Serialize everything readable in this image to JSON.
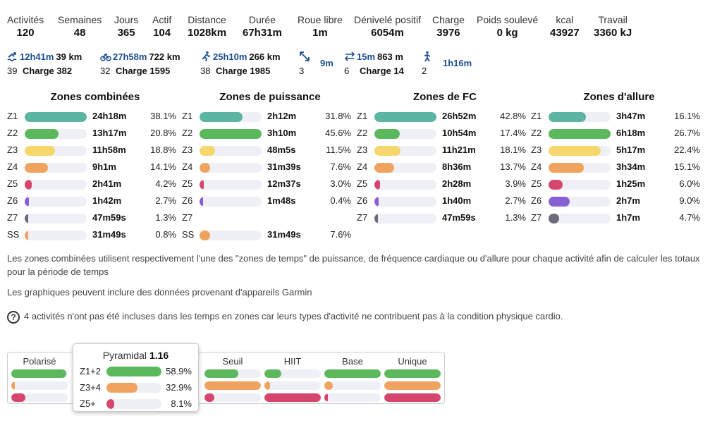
{
  "stats": [
    {
      "label": "Activités",
      "value": "120"
    },
    {
      "label": "Semaines",
      "value": "48"
    },
    {
      "label": "Jours",
      "value": "365"
    },
    {
      "label": "Actif",
      "value": "104"
    },
    {
      "label": "Distance",
      "value": "1028km"
    },
    {
      "label": "Durée",
      "value": "67h31m"
    },
    {
      "label": "Roue libre",
      "value": "1m"
    },
    {
      "label": "Dénivelé positif",
      "value": "6054m"
    },
    {
      "label": "Charge",
      "value": "3976"
    },
    {
      "label": "Poids soulevé",
      "value": "0 kg"
    },
    {
      "label": "kcal",
      "value": "43927"
    },
    {
      "label": "Travail",
      "value": "3360 kJ"
    }
  ],
  "sports": [
    {
      "icon": "swim-icon",
      "time": "12h41m",
      "distance": "39 km",
      "count": "39",
      "charge": "Charge 382"
    },
    {
      "icon": "bike-icon",
      "time": "27h58m",
      "distance": "722 km",
      "count": "32",
      "charge": "Charge 1595"
    },
    {
      "icon": "run-icon",
      "time": "25h10m",
      "distance": "266 km",
      "count": "38",
      "charge": "Charge 1985"
    },
    {
      "icon": "diagonal-arrows-icon",
      "time": "9m",
      "distance": "",
      "count": "3",
      "charge": ""
    },
    {
      "icon": "swap-arrows-icon",
      "time": "15m",
      "distance": "863 m",
      "count": "6",
      "charge": "Charge 14"
    },
    {
      "icon": "walk-icon",
      "time": "1h16m",
      "distance": "",
      "count": "2",
      "charge": ""
    }
  ],
  "colors": {
    "z1": "#5bb5a2",
    "z2": "#5cb85c",
    "z3": "#f5d76e",
    "z4": "#f0a35e",
    "z5": "#d6456e",
    "z6": "#8a5fd6",
    "z7": "#6b6b7b",
    "ss": "#f0a35e",
    "time_blue": "#1a4d8f"
  },
  "zone_panels": [
    {
      "title": "Zones combinées",
      "rows": [
        {
          "zone": "Z1",
          "time": "24h18m",
          "pct": "38.1%",
          "value": 38.1,
          "color": "#5bb5a2"
        },
        {
          "zone": "Z2",
          "time": "13h17m",
          "pct": "20.8%",
          "value": 20.8,
          "color": "#5cb85c"
        },
        {
          "zone": "Z3",
          "time": "11h58m",
          "pct": "18.8%",
          "value": 18.8,
          "color": "#f5d76e"
        },
        {
          "zone": "Z4",
          "time": "9h1m",
          "pct": "14.1%",
          "value": 14.1,
          "color": "#f0a35e"
        },
        {
          "zone": "Z5",
          "time": "2h41m",
          "pct": "4.2%",
          "value": 4.2,
          "color": "#d6456e"
        },
        {
          "zone": "Z6",
          "time": "1h42m",
          "pct": "2.7%",
          "value": 2.7,
          "color": "#8a5fd6"
        },
        {
          "zone": "Z7",
          "time": "47m59s",
          "pct": "1.3%",
          "value": 1.3,
          "color": "#6b6b7b"
        },
        {
          "zone": "SS",
          "time": "31m49s",
          "pct": "0.8%",
          "value": 0.8,
          "color": "#f0a35e"
        }
      ]
    },
    {
      "title": "Zones de puissance",
      "rows": [
        {
          "zone": "Z1",
          "time": "2h12m",
          "pct": "31.8%",
          "value": 31.8,
          "color": "#5bb5a2"
        },
        {
          "zone": "Z2",
          "time": "3h10m",
          "pct": "45.6%",
          "value": 45.6,
          "color": "#5cb85c"
        },
        {
          "zone": "Z3",
          "time": "48m5s",
          "pct": "11.5%",
          "value": 11.5,
          "color": "#f5d76e"
        },
        {
          "zone": "Z4",
          "time": "31m39s",
          "pct": "7.6%",
          "value": 7.6,
          "color": "#f0a35e"
        },
        {
          "zone": "Z5",
          "time": "12m37s",
          "pct": "3.0%",
          "value": 3.0,
          "color": "#d6456e"
        },
        {
          "zone": "Z6",
          "time": "1m48s",
          "pct": "0.4%",
          "value": 0.4,
          "color": "#8a5fd6"
        },
        {
          "zone": "Z7",
          "time": "",
          "pct": "",
          "value": 0,
          "color": "#6b6b7b"
        },
        {
          "zone": "SS",
          "time": "31m49s",
          "pct": "7.6%",
          "value": 7.6,
          "color": "#f0a35e"
        }
      ]
    },
    {
      "title": "Zones de FC",
      "rows": [
        {
          "zone": "Z1",
          "time": "26h52m",
          "pct": "42.8%",
          "value": 42.8,
          "color": "#5bb5a2"
        },
        {
          "zone": "Z2",
          "time": "10h54m",
          "pct": "17.4%",
          "value": 17.4,
          "color": "#5cb85c"
        },
        {
          "zone": "Z3",
          "time": "11h21m",
          "pct": "18.1%",
          "value": 18.1,
          "color": "#f5d76e"
        },
        {
          "zone": "Z4",
          "time": "8h36m",
          "pct": "13.7%",
          "value": 13.7,
          "color": "#f0a35e"
        },
        {
          "zone": "Z5",
          "time": "2h28m",
          "pct": "3.9%",
          "value": 3.9,
          "color": "#d6456e"
        },
        {
          "zone": "Z6",
          "time": "1h40m",
          "pct": "2.7%",
          "value": 2.7,
          "color": "#8a5fd6"
        },
        {
          "zone": "Z7",
          "time": "47m59s",
          "pct": "1.3%",
          "value": 1.3,
          "color": "#6b6b7b"
        }
      ]
    },
    {
      "title": "Zones d'allure",
      "rows": [
        {
          "zone": "Z1",
          "time": "3h47m",
          "pct": "16.1%",
          "value": 16.1,
          "color": "#5bb5a2"
        },
        {
          "zone": "Z2",
          "time": "6h18m",
          "pct": "26.7%",
          "value": 26.7,
          "color": "#5cb85c"
        },
        {
          "zone": "Z3",
          "time": "5h17m",
          "pct": "22.4%",
          "value": 22.4,
          "color": "#f5d76e"
        },
        {
          "zone": "Z4",
          "time": "3h34m",
          "pct": "15.1%",
          "value": 15.1,
          "color": "#f0a35e"
        },
        {
          "zone": "Z5",
          "time": "1h25m",
          "pct": "6.0%",
          "value": 6.0,
          "color": "#d6456e"
        },
        {
          "zone": "Z6",
          "time": "2h7m",
          "pct": "9.0%",
          "value": 9.0,
          "color": "#8a5fd6"
        },
        {
          "zone": "Z7",
          "time": "1h7m",
          "pct": "4.7%",
          "value": 4.7,
          "color": "#6b6b7b"
        }
      ]
    }
  ],
  "notes": {
    "combined": "Les zones combinées utilisent respectivement l'une des \"zones de temps\" de puissance, de fréquence cardiaque ou d'allure pour chaque activité afin de calculer les totaux pour la période de temps",
    "garmin": "Les graphiques peuvent inclure des données provenant d'appareils Garmin",
    "excluded": "4 activités n'ont pas été incluses dans les temps en zones car leurs types d'activité ne contribuent pas à la condition physique cardio."
  },
  "distribution": {
    "models": [
      {
        "label": "Polarisé",
        "bars": [
          0.98,
          0.06,
          0.25
        ]
      },
      {
        "label": "Pyramidal",
        "bars": [
          0.589,
          0.329,
          0.081
        ]
      },
      {
        "label": "Seuil",
        "bars": [
          0.6,
          1.0,
          0.18
        ]
      },
      {
        "label": "HIIT",
        "bars": [
          0.3,
          0.1,
          1.0
        ]
      },
      {
        "label": "Base",
        "bars": [
          1.0,
          0.15,
          0.06
        ]
      },
      {
        "label": "Unique",
        "bars": [
          1.0,
          1.0,
          1.0
        ]
      }
    ],
    "bar_colors": [
      "#5cb85c",
      "#f0a35e",
      "#d6456e"
    ],
    "tooltip": {
      "name": "Pyramidal",
      "score": "1.16",
      "rows": [
        {
          "label": "Z1+2",
          "pct": "58.9%",
          "value": 58.9,
          "color": "#5cb85c"
        },
        {
          "label": "Z3+4",
          "pct": "32.9%",
          "value": 32.9,
          "color": "#f0a35e"
        },
        {
          "label": "Z5+",
          "pct": "8.1%",
          "value": 8.1,
          "color": "#d6456e"
        }
      ]
    }
  }
}
